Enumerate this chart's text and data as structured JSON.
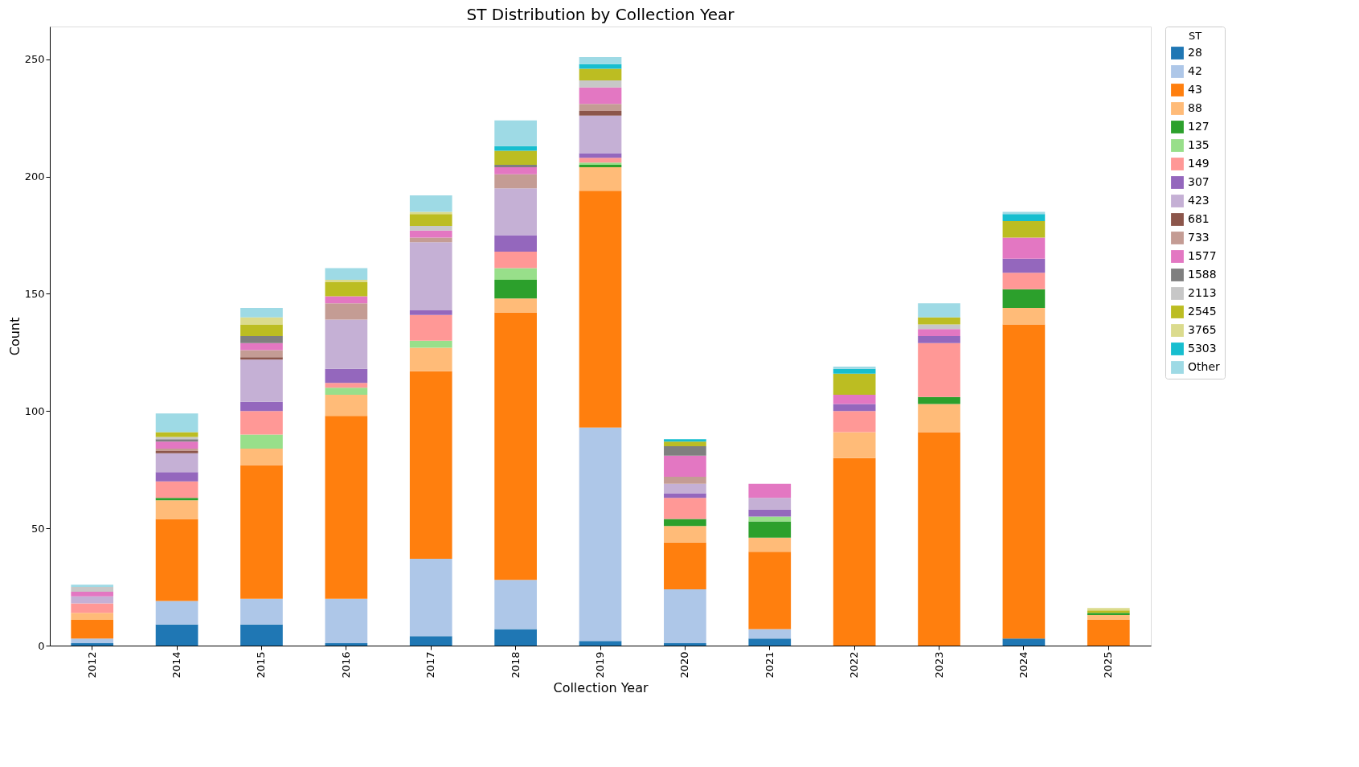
{
  "chart_data": {
    "type": "bar",
    "title": "ST Distribution by Collection Year",
    "xlabel": "Collection Year",
    "ylabel": "Count",
    "legend_title": "ST",
    "categories": [
      "2012",
      "2014",
      "2015",
      "2016",
      "2017",
      "2018",
      "2019",
      "2020",
      "2021",
      "2022",
      "2023",
      "2024",
      "2025"
    ],
    "stacked": true,
    "ylim": [
      0,
      264
    ],
    "yticks": [
      0,
      50,
      100,
      150,
      200,
      250
    ],
    "grid": false,
    "legend": "right",
    "series": [
      {
        "name": "28",
        "color": "#1f77b4",
        "values": [
          1,
          9,
          9,
          1,
          4,
          7,
          2,
          1,
          3,
          null,
          null,
          3,
          null
        ]
      },
      {
        "name": "42",
        "color": "#aec7e8",
        "values": [
          2,
          10,
          11,
          19,
          33,
          21,
          91,
          23,
          4,
          null,
          null,
          null,
          null
        ]
      },
      {
        "name": "43",
        "color": "#ff7f0e",
        "values": [
          8,
          35,
          57,
          78,
          80,
          114,
          101,
          20,
          33,
          80,
          91,
          134,
          11
        ]
      },
      {
        "name": "88",
        "color": "#ffbb78",
        "values": [
          3,
          8,
          7,
          9,
          10,
          6,
          10,
          7,
          6,
          11,
          12,
          7,
          2
        ]
      },
      {
        "name": "127",
        "color": "#2ca02c",
        "values": [
          null,
          1,
          null,
          null,
          null,
          8,
          1,
          3,
          7,
          null,
          3,
          8,
          1
        ]
      },
      {
        "name": "135",
        "color": "#98df8a",
        "values": [
          null,
          null,
          6,
          3,
          3,
          5,
          1,
          null,
          2,
          null,
          null,
          null,
          null
        ]
      },
      {
        "name": "149",
        "color": "#ff9896",
        "values": [
          4,
          7,
          10,
          2,
          11,
          7,
          2,
          9,
          null,
          9,
          23,
          7,
          null
        ]
      },
      {
        "name": "307",
        "color": "#9467bd",
        "values": [
          null,
          4,
          4,
          6,
          2,
          7,
          2,
          2,
          3,
          3,
          3,
          6,
          null
        ]
      },
      {
        "name": "423",
        "color": "#c5b0d5",
        "values": [
          3,
          8,
          18,
          21,
          29,
          20,
          16,
          4,
          5,
          null,
          null,
          null,
          null
        ]
      },
      {
        "name": "681",
        "color": "#8c564b",
        "values": [
          null,
          1,
          1,
          null,
          null,
          null,
          2,
          null,
          null,
          null,
          null,
          null,
          null
        ]
      },
      {
        "name": "733",
        "color": "#c49c94",
        "values": [
          null,
          1,
          3,
          7,
          2,
          6,
          3,
          3,
          null,
          null,
          null,
          null,
          null
        ]
      },
      {
        "name": "1577",
        "color": "#e377c2",
        "values": [
          2,
          3,
          3,
          3,
          3,
          3,
          7,
          9,
          6,
          4,
          3,
          9,
          null
        ]
      },
      {
        "name": "1588",
        "color": "#7f7f7f",
        "values": [
          null,
          1,
          3,
          null,
          null,
          1,
          null,
          4,
          null,
          null,
          null,
          null,
          null
        ]
      },
      {
        "name": "2113",
        "color": "#c7c7c7",
        "values": [
          2,
          1,
          null,
          null,
          2,
          null,
          3,
          null,
          null,
          null,
          2,
          null,
          null
        ]
      },
      {
        "name": "2545",
        "color": "#bcbd22",
        "values": [
          null,
          2,
          5,
          6,
          5,
          6,
          5,
          2,
          null,
          9,
          3,
          7,
          1
        ]
      },
      {
        "name": "3765",
        "color": "#dbdb8d",
        "values": [
          null,
          null,
          3,
          1,
          1,
          null,
          null,
          null,
          null,
          null,
          null,
          null,
          1
        ]
      },
      {
        "name": "5303",
        "color": "#17becf",
        "values": [
          null,
          null,
          null,
          null,
          null,
          2,
          2,
          1,
          null,
          2,
          null,
          3,
          null
        ]
      },
      {
        "name": "Other",
        "color": "#9edae5",
        "values": [
          1,
          8,
          4,
          5,
          7,
          11,
          3,
          null,
          null,
          1,
          6,
          1,
          null
        ]
      }
    ]
  }
}
